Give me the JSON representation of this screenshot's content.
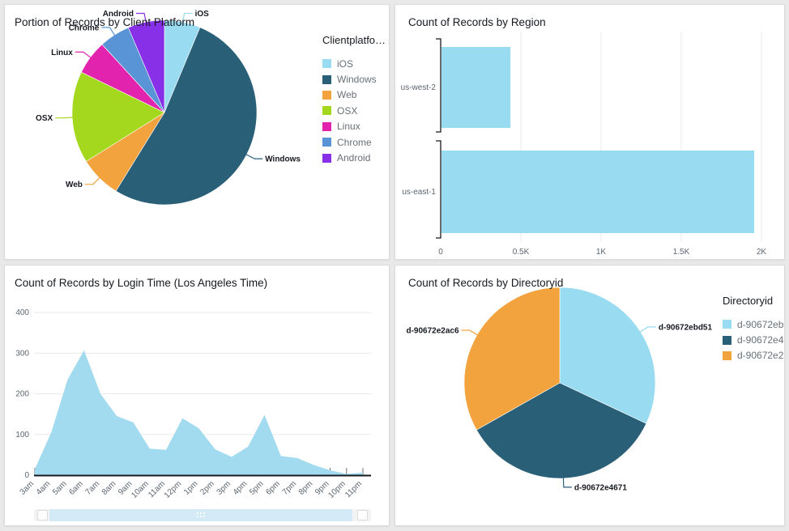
{
  "chart_data": [
    {
      "id": "client_platform",
      "type": "pie",
      "title": "Portion of Records by Client Platform",
      "legend_title": "Clientplatfo…",
      "legend_position": "right",
      "slices": [
        {
          "label": "iOS",
          "percent": 6.3,
          "color": "#99dbf0"
        },
        {
          "label": "Windows",
          "percent": 52.5,
          "color": "#2a5f78"
        },
        {
          "label": "Web",
          "percent": 7.3,
          "color": "#f2a33e"
        },
        {
          "label": "OSX",
          "percent": 16.1,
          "color": "#a4d81e"
        },
        {
          "label": "Linux",
          "percent": 6.0,
          "color": "#e223ae"
        },
        {
          "label": "Chrome",
          "percent": 5.4,
          "color": "#5995d6"
        },
        {
          "label": "Android",
          "percent": 6.4,
          "color": "#8730e8"
        }
      ]
    },
    {
      "id": "region",
      "type": "bar",
      "orientation": "horizontal",
      "title": "Count of Records by Region",
      "categories": [
        "us-west-2",
        "us-east-1"
      ],
      "values": [
        430,
        1950
      ],
      "xticks": [
        "0",
        "0.5K",
        "1K",
        "1.5K",
        "2K"
      ],
      "xlim": [
        0,
        2000
      ],
      "bar_color": "#99dbf0",
      "grid": true
    },
    {
      "id": "login_time",
      "type": "area",
      "title": "Count of Records by Login Time (Los Angeles Time)",
      "x": [
        "3am",
        "4am",
        "5am",
        "6am",
        "7am",
        "8am",
        "9am",
        "10am",
        "11am",
        "12pm",
        "1pm",
        "2pm",
        "3pm",
        "4pm",
        "5pm",
        "6pm",
        "7pm",
        "8pm",
        "9pm",
        "10pm",
        "11pm"
      ],
      "values": [
        15,
        105,
        235,
        307,
        200,
        145,
        130,
        65,
        62,
        140,
        115,
        63,
        45,
        70,
        148,
        47,
        42,
        25,
        12,
        3,
        6
      ],
      "yticks": [
        0,
        100,
        200,
        300,
        400
      ],
      "ylim": [
        0,
        400
      ],
      "fill_color": "#a2daef"
    },
    {
      "id": "directoryid",
      "type": "pie",
      "title": "Count of Records by Directoryid",
      "legend_title": "Directoryid",
      "legend_position": "right",
      "legend_labels": [
        "d-90672eb…",
        "d-90672e4…",
        "d-90672e2…"
      ],
      "slices": [
        {
          "label": "d-90672ebd51",
          "percent": 32.0,
          "color": "#99dbf0"
        },
        {
          "label": "d-90672e4671",
          "percent": 34.8,
          "color": "#2a5f78"
        },
        {
          "label": "d-90672e2ac6",
          "percent": 33.2,
          "color": "#f2a33e"
        }
      ]
    }
  ],
  "colors": {
    "axis": "#16191f",
    "grid": "#e8e9ea",
    "tick_text": "#5b6570",
    "callout_text": "#16191f",
    "page_bg": "#e9e9e9"
  }
}
